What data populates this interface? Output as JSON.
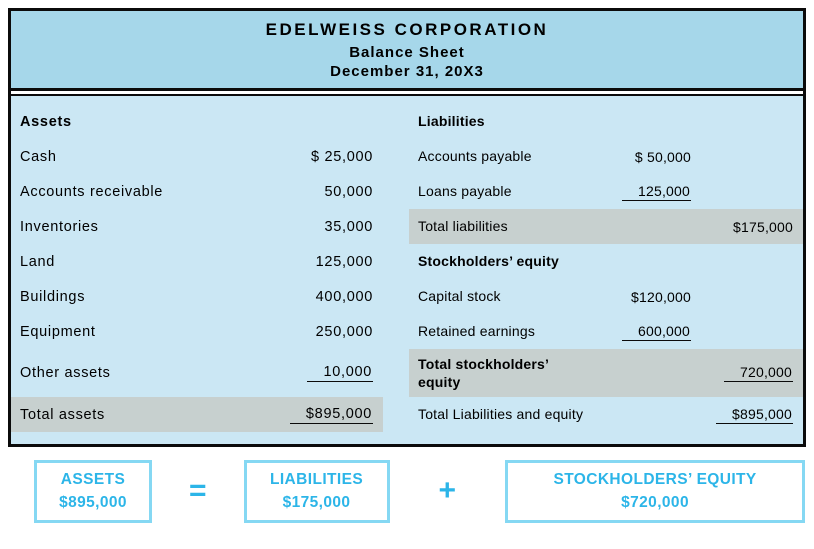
{
  "header": {
    "company": "EDELWEISS CORPORATION",
    "title": "Balance Sheet",
    "date": "December 31, 20X3"
  },
  "assets": {
    "heading": "Assets",
    "rows": [
      {
        "label": "Cash",
        "value": "$ 25,000"
      },
      {
        "label": "Accounts receivable",
        "value": "50,000"
      },
      {
        "label": "Inventories",
        "value": "35,000"
      },
      {
        "label": "Land",
        "value": "125,000"
      },
      {
        "label": "Buildings",
        "value": "400,000"
      },
      {
        "label": "Equipment",
        "value": "250,000"
      },
      {
        "label": "Other assets",
        "value": "10,000"
      },
      {
        "label": "Total assets",
        "value": "$895,000"
      }
    ]
  },
  "liabilities": {
    "heading": "Liabilities",
    "rows": [
      {
        "label": "Accounts payable",
        "value": "$ 50,000"
      },
      {
        "label": "Loans payable",
        "value": "125,000"
      },
      {
        "label": "Total liabilities",
        "value": "$175,000"
      }
    ],
    "equity_heading": "Stockholders’ equity",
    "equity_rows": [
      {
        "label": "Capital stock",
        "value": "$120,000"
      },
      {
        "label": "Retained earnings",
        "value": "600,000"
      },
      {
        "label": "Total stockholders’ equity",
        "value": "720,000"
      }
    ],
    "total_row": {
      "label": "Total Liabilities and equity",
      "value": "$895,000"
    }
  },
  "equation": {
    "assets": {
      "label": "ASSETS",
      "value": "$895,000"
    },
    "equals": "=",
    "liabilities": {
      "label": "LIABILITIES",
      "value": "$175,000"
    },
    "plus": "+",
    "equity": {
      "label": "STOCKHOLDERS’ EQUITY",
      "value": "$720,000"
    }
  },
  "colors": {
    "header_bg": "#a6d7ea",
    "body_bg": "#cbe7f4",
    "total_row_bg": "#c7d0cf",
    "equation_accent": "#2cb5e8",
    "equation_border": "#85d8f3"
  }
}
